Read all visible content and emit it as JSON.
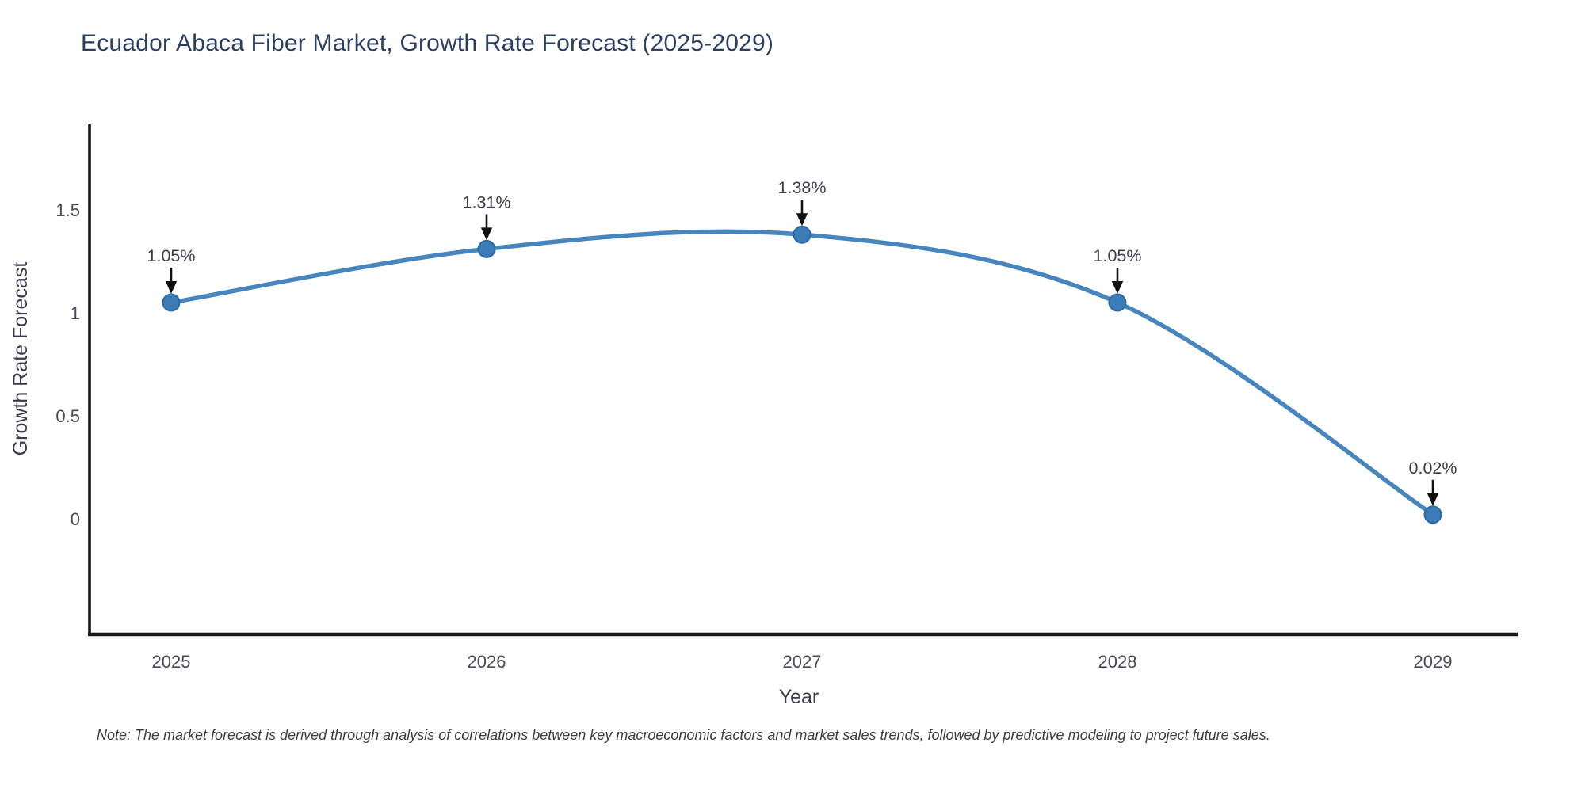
{
  "figure": {
    "note": "Note: The market forecast is derived through analysis of correlations between key macroeconomic factors and market sales trends, followed by predictive modeling to project future sales."
  },
  "chart_data": {
    "type": "line",
    "title": "Ecuador Abaca Fiber Market, Growth Rate Forecast (2025-2029)",
    "x": [
      2025,
      2026,
      2027,
      2028,
      2029
    ],
    "xtick_labels": [
      "2025",
      "2026",
      "2027",
      "2028",
      "2029"
    ],
    "series": [
      {
        "name": "Growth Rate Forecast",
        "values": [
          1.05,
          1.31,
          1.38,
          1.05,
          0.02
        ],
        "point_labels": [
          "1.05%",
          "1.31%",
          "1.38%",
          "1.05%",
          "0.02%"
        ]
      }
    ],
    "xlabel": "Year",
    "ylabel": "Growth Rate Forecast",
    "yticks": [
      0,
      0.5,
      1,
      1.5
    ],
    "ytick_labels": [
      "0",
      "0.5",
      "1",
      "1.5"
    ],
    "ylim": [
      -0.56,
      1.9
    ],
    "line_shape": "spline",
    "grid": false,
    "legend_position": "none",
    "annotations_style": "label-with-down-arrow",
    "colors": {
      "line": "#4685bd",
      "marker": "#3b7cb8",
      "marker_edge": "#2d6ba3",
      "arrow": "#111111",
      "axis": "#16161d",
      "title": "#2a3f5f",
      "tick": "#4a4a58",
      "axis_label": "#3a3a4c",
      "annotation_text": "#3d3d4d",
      "note": "#3d3d47",
      "background": "#ffffff"
    }
  }
}
